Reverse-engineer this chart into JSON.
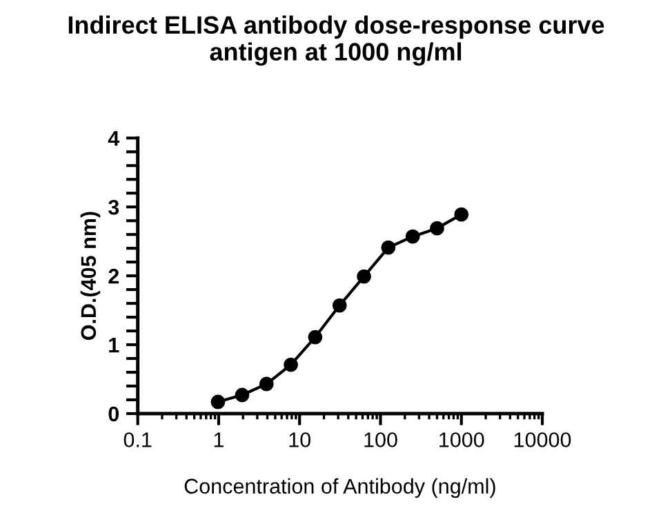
{
  "chart_data": {
    "type": "line",
    "title": "Indirect ELISA antibody dose-response curve\nantigen at 1000 ng/ml",
    "xlabel": "Concentration of Antibody (ng/ml)",
    "ylabel": "O.D.(405 nm)",
    "x": [
      0.98,
      1.95,
      3.9,
      7.8,
      15.6,
      31.25,
      62.5,
      125,
      250,
      500,
      1000
    ],
    "series": [
      {
        "color": "#000000",
        "values": [
          0.17,
          0.27,
          0.43,
          0.71,
          1.11,
          1.57,
          1.99,
          2.41,
          2.57,
          2.69,
          2.89
        ]
      }
    ],
    "log": "x",
    "marker": "circle",
    "line_style": "solid",
    "grid": false,
    "legend": false,
    "xlim": [
      0.1,
      10000
    ],
    "xticks": [
      0.1,
      1,
      10,
      100,
      1000,
      10000
    ],
    "ylim": [
      0,
      4
    ],
    "yticks": [
      0,
      {
        "value": 0.2,
        "label": null
      },
      {
        "value": 0.4,
        "label": null
      },
      {
        "value": 0.6,
        "label": null
      },
      {
        "value": 0.8,
        "label": null
      },
      1,
      {
        "value": 1.2,
        "label": null
      },
      {
        "value": 1.4,
        "label": null
      },
      {
        "value": 1.6,
        "label": null
      },
      {
        "value": 1.8,
        "label": null
      },
      2,
      {
        "value": 2.2,
        "label": null
      },
      {
        "value": 2.4,
        "label": null
      },
      {
        "value": 2.6,
        "label": null
      },
      {
        "value": 2.8,
        "label": null
      },
      3,
      {
        "value": 3.2,
        "label": null
      },
      {
        "value": 3.4,
        "label": null
      },
      {
        "value": 3.6,
        "label": null
      },
      {
        "value": 3.8,
        "label": null
      },
      4
    ]
  }
}
